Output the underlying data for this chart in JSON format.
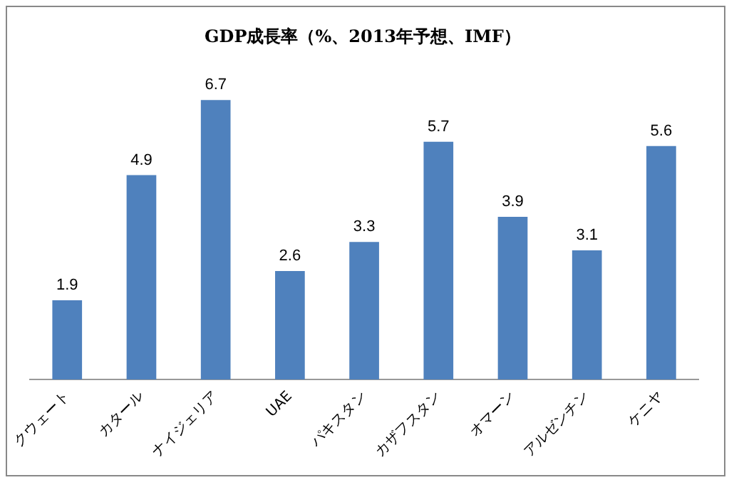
{
  "chart_data": {
    "type": "bar",
    "title": "GDP成長率（%、2013年予想、IMF）",
    "categories": [
      "クウェート",
      "カタール",
      "ナイジェリア",
      "UAE",
      "パキスタン",
      "カザフスタン",
      "オマーン",
      "アルゼンチン",
      "ケニヤ"
    ],
    "values": [
      1.9,
      4.9,
      6.7,
      2.6,
      3.3,
      5.7,
      3.9,
      3.1,
      5.6
    ],
    "color": "#4f81bd",
    "data_labels": true
  }
}
